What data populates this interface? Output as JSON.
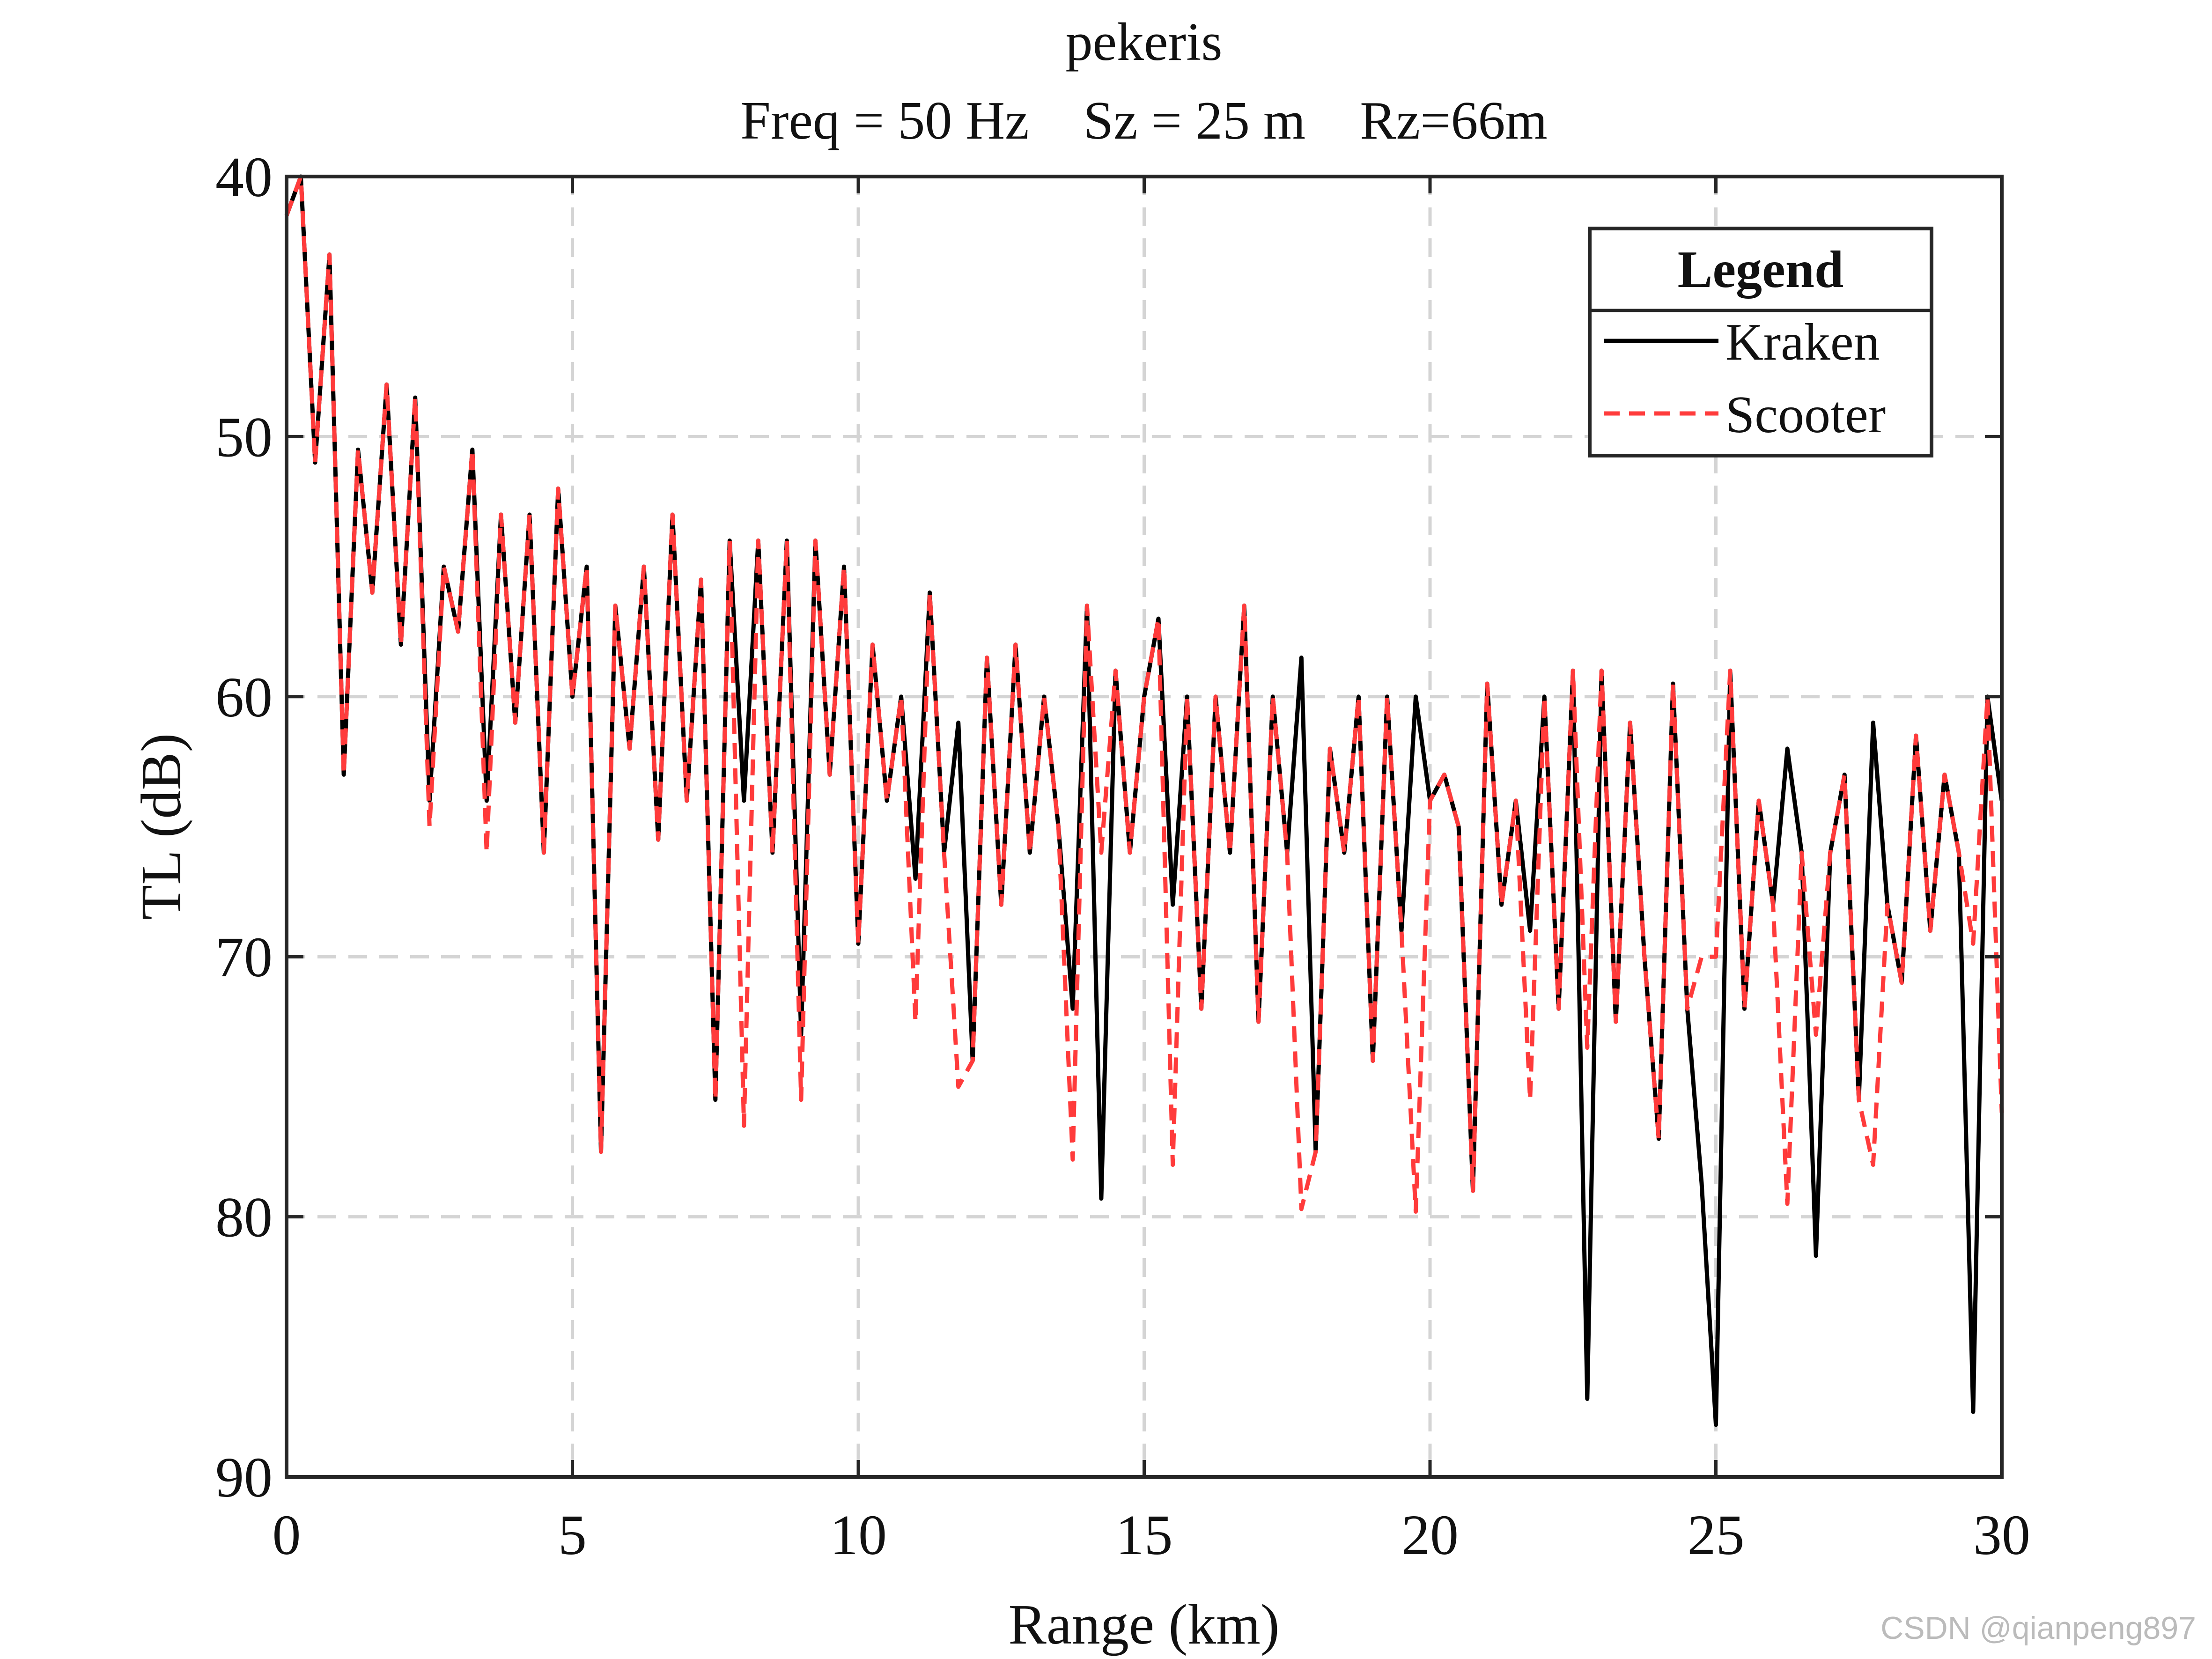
{
  "chart_data": {
    "type": "line",
    "title": "pekeris",
    "subtitle": "Freq = 50 Hz    Sz = 25 m    Rz=66m",
    "x_label": "Range (km)",
    "y_label": "TL (dB)",
    "xlim": [
      0,
      30
    ],
    "xticks": [
      0,
      5,
      10,
      15,
      20,
      25,
      30
    ],
    "ylim": [
      40,
      90
    ],
    "yticks": [
      40,
      50,
      60,
      70,
      80,
      90
    ],
    "y_direction": "reverse",
    "grid": true,
    "legend_title": "Legend",
    "legend_position": "upper right",
    "watermark": "CSDN @qianpeng897",
    "x": [
      0,
      0.25,
      0.5,
      0.75,
      1,
      1.25,
      1.5,
      1.75,
      2,
      2.25,
      2.5,
      2.75,
      3,
      3.25,
      3.5,
      3.75,
      4,
      4.25,
      4.5,
      4.75,
      5,
      5.25,
      5.5,
      5.75,
      6,
      6.25,
      6.5,
      6.75,
      7,
      7.25,
      7.5,
      7.75,
      8,
      8.25,
      8.5,
      8.75,
      9,
      9.25,
      9.5,
      9.75,
      10,
      10.25,
      10.5,
      10.75,
      11,
      11.25,
      11.5,
      11.75,
      12,
      12.25,
      12.5,
      12.75,
      13,
      13.25,
      13.5,
      13.75,
      14,
      14.25,
      14.5,
      14.75,
      15,
      15.25,
      15.5,
      15.75,
      16,
      16.25,
      16.5,
      16.75,
      17,
      17.25,
      17.5,
      17.75,
      18,
      18.25,
      18.5,
      18.75,
      19,
      19.25,
      19.5,
      19.75,
      20,
      20.25,
      20.5,
      20.75,
      21,
      21.25,
      21.5,
      21.75,
      22,
      22.25,
      22.5,
      22.75,
      23,
      23.25,
      23.5,
      23.75,
      24,
      24.25,
      24.5,
      24.75,
      25,
      25.25,
      25.5,
      25.75,
      26,
      26.25,
      26.5,
      26.75,
      27,
      27.25,
      27.5,
      27.75,
      28,
      28.25,
      28.5,
      28.75,
      29,
      29.25,
      29.5,
      29.75,
      30
    ],
    "series": [
      {
        "name": "Kraken",
        "color": "#000000",
        "dash": false,
        "values": [
          41.5,
          40,
          51,
          43,
          63,
          50.5,
          56,
          48,
          58,
          48.5,
          64,
          55,
          57.5,
          50.5,
          64,
          53,
          61,
          53,
          66,
          52,
          60,
          55,
          77.5,
          56.5,
          62,
          55,
          65.5,
          53,
          64,
          55.5,
          75.5,
          54,
          64,
          54,
          66,
          54,
          73,
          54,
          63,
          55,
          69.5,
          58,
          64,
          60,
          67,
          56,
          66,
          61,
          74,
          58.5,
          68,
          58,
          66,
          60,
          65,
          72,
          56.5,
          79.3,
          59,
          66,
          60,
          57,
          68,
          60,
          72,
          60,
          66,
          56.5,
          72.5,
          60,
          66,
          58.5,
          77.5,
          62,
          66,
          60,
          74,
          60,
          69,
          60,
          64,
          63,
          65,
          79,
          59.5,
          68,
          64,
          69,
          60,
          72,
          59,
          87,
          59,
          72.5,
          61,
          70,
          77,
          59.5,
          72,
          78.7,
          88,
          59,
          72,
          64,
          68,
          62,
          66,
          81.5,
          66,
          63,
          75.5,
          61,
          68,
          71,
          61.5,
          69,
          63,
          66,
          87.5,
          60,
          64
        ]
      },
      {
        "name": "Scooter",
        "color": "#ff3b3b",
        "dash": true,
        "values": [
          41.5,
          40,
          51,
          43,
          63,
          50.5,
          56,
          48,
          58,
          48.5,
          65,
          55,
          57.5,
          50.5,
          66,
          53,
          61,
          53,
          66,
          52,
          60,
          55,
          77.5,
          56.5,
          62,
          55,
          65.5,
          53,
          64,
          55.5,
          75.5,
          54,
          76.5,
          54,
          66,
          54,
          75.5,
          54,
          63,
          55,
          69.5,
          58,
          64,
          60,
          72.5,
          56,
          66,
          75,
          74,
          58.5,
          68,
          58,
          66,
          60,
          65,
          77.8,
          56.5,
          66,
          59,
          66,
          60,
          57,
          78,
          60,
          72,
          60,
          66,
          56.5,
          72.5,
          60,
          66,
          79.7,
          77.5,
          62,
          66,
          60,
          74,
          60,
          69,
          79.8,
          64,
          63,
          65,
          79,
          59.5,
          68,
          64,
          75.5,
          60,
          72,
          59,
          73.5,
          59,
          72.5,
          61,
          70,
          77,
          59.5,
          72,
          70,
          70,
          59,
          72,
          64,
          68,
          79.5,
          66,
          73,
          66,
          63,
          75.5,
          78,
          68,
          71,
          61.5,
          69,
          63,
          66,
          69.5,
          60,
          76
        ]
      }
    ]
  }
}
